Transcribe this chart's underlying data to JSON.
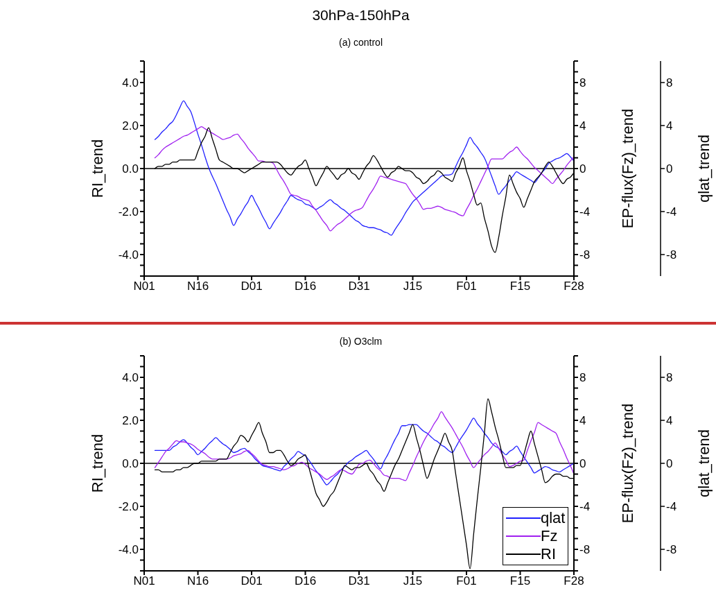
{
  "chart_data": [
    {
      "type": "line",
      "title": "30hPa-150hPa",
      "subtitle": "(a) control",
      "ylabel": "RI_trend",
      "y2label": "EP-flux(Fz)_trend",
      "y3label": "qlat_trend",
      "categories": [
        "N01",
        null,
        null,
        null,
        null,
        null,
        null,
        null,
        null,
        null,
        null,
        null,
        null,
        null,
        null,
        "N16",
        null,
        null,
        null,
        null,
        null,
        null,
        null,
        null,
        null,
        null,
        null,
        null,
        null,
        null,
        "D01",
        null,
        null,
        null,
        null,
        null,
        null,
        null,
        null,
        null,
        null,
        null,
        null,
        null,
        null,
        "D16",
        null,
        null,
        null,
        null,
        null,
        null,
        null,
        null,
        null,
        null,
        null,
        null,
        null,
        null,
        "D31",
        null,
        null,
        null,
        null,
        null,
        null,
        null,
        null,
        null,
        null,
        null,
        null,
        null,
        null,
        "J15",
        null,
        null,
        null,
        null,
        null,
        null,
        null,
        null,
        null,
        null,
        null,
        null,
        null,
        null,
        "F01",
        null,
        null,
        null,
        null,
        null,
        null,
        null,
        null,
        null,
        null,
        null,
        null,
        null,
        null,
        "F15",
        null,
        null,
        null,
        null,
        null,
        null,
        null,
        null,
        null,
        null,
        null,
        null,
        null,
        null,
        "F28"
      ],
      "ylim": [
        -5,
        5
      ],
      "yticks": [
        {
          "value": -5,
          "label": null
        },
        {
          "value": -4.5,
          "label": null
        },
        {
          "value": -4,
          "label": "-4.0"
        },
        {
          "value": -3.5,
          "label": null
        },
        {
          "value": -3,
          "label": null
        },
        {
          "value": -2.5,
          "label": null
        },
        {
          "value": -2,
          "label": "-2.0"
        },
        {
          "value": -1.5,
          "label": null
        },
        {
          "value": -1,
          "label": null
        },
        {
          "value": -0.5,
          "label": null
        },
        {
          "value": 0,
          "label": "0.0"
        },
        {
          "value": 0.5,
          "label": null
        },
        {
          "value": 1,
          "label": null
        },
        {
          "value": 1.5,
          "label": null
        },
        {
          "value": 2,
          "label": "2.0"
        },
        {
          "value": 2.5,
          "label": null
        },
        {
          "value": 3,
          "label": null
        },
        {
          "value": 3.5,
          "label": null
        },
        {
          "value": 4,
          "label": "4.0"
        },
        {
          "value": 4.5,
          "label": null
        },
        {
          "value": 5,
          "label": null
        }
      ],
      "y2lim": [
        -10,
        10
      ],
      "y2ticks": [
        {
          "value": -10,
          "label": null
        },
        {
          "value": -9,
          "label": null
        },
        -8,
        {
          "value": -7,
          "label": null
        },
        {
          "value": -6,
          "label": null
        },
        {
          "value": -5,
          "label": null
        },
        -4,
        {
          "value": -3,
          "label": null
        },
        {
          "value": -2,
          "label": null
        },
        {
          "value": -1,
          "label": null
        },
        0,
        {
          "value": 1,
          "label": null
        },
        {
          "value": 2,
          "label": null
        },
        {
          "value": 3,
          "label": null
        },
        4,
        {
          "value": 5,
          "label": null
        },
        {
          "value": 6,
          "label": null
        },
        {
          "value": 7,
          "label": null
        },
        8,
        {
          "value": 9,
          "label": null
        },
        {
          "value": 10,
          "label": null
        }
      ],
      "y3lim": [
        -10,
        10
      ],
      "y3ticks": [
        -8,
        -4,
        0,
        4,
        8
      ],
      "grid": false,
      "legend": false,
      "marker": "none",
      "line_style": "solid",
      "ref_lines": [
        {
          "axis": "y",
          "value": 0,
          "color": "#000000"
        }
      ],
      "series": [
        {
          "color": "#2020ff",
          "axis": "y3",
          "values": [
            null,
            null,
            null,
            2.7,
            3.0,
            3.4,
            3.7,
            4.1,
            4.4,
            5.0,
            5.7,
            6.3,
            5.8,
            5.3,
            4.3,
            3.2,
            2.2,
            1.1,
            0.1,
            -0.7,
            -1.4,
            -2.2,
            -3.0,
            -3.8,
            -4.5,
            -5.3,
            -4.7,
            -4.2,
            -3.6,
            -3.1,
            -2.5,
            -3.1,
            -3.7,
            -4.4,
            -5.0,
            -5.6,
            -5.1,
            -4.6,
            -4.1,
            -3.5,
            -3.0,
            -2.5,
            -2.7,
            -2.9,
            -3.0,
            -3.3,
            -3.4,
            -3.6,
            -3.8,
            -3.6,
            -3.4,
            -3.1,
            -2.9,
            -3.2,
            -3.4,
            -3.7,
            -3.9,
            -4.2,
            -4.5,
            -4.8,
            -5.0,
            -5.3,
            -5.4,
            -5.5,
            -5.5,
            -5.6,
            -5.7,
            -5.9,
            -6.0,
            -6.2,
            -5.7,
            -5.2,
            -4.7,
            -4.1,
            -3.6,
            -3.1,
            -2.8,
            -2.5,
            -2.2,
            -1.9,
            -1.6,
            -1.3,
            -1.0,
            -0.7,
            -0.6,
            -0.6,
            -0.5,
            0.2,
            0.9,
            1.5,
            2.2,
            2.9,
            2.4,
            2.0,
            1.5,
            1.0,
            0.2,
            -0.7,
            -1.6,
            -2.4,
            -2.0,
            -1.6,
            -1.1,
            -0.7,
            -0.3,
            -0.5,
            -0.7,
            -0.9,
            -1.1,
            -1.3,
            -0.9,
            -0.4,
            0.0,
            0.5,
            0.7,
            0.9,
            1.0,
            1.2,
            1.4,
            1.1,
            0.7
          ]
        },
        {
          "color": "#a020f0",
          "axis": "y2",
          "values": [
            null,
            null,
            null,
            1.0,
            1.3,
            1.7,
            2.0,
            2.2,
            2.4,
            2.6,
            2.8,
            3.0,
            3.1,
            3.3,
            3.5,
            3.7,
            3.9,
            3.7,
            3.5,
            3.3,
            3.1,
            2.9,
            2.7,
            2.8,
            2.9,
            3.1,
            3.2,
            2.8,
            2.4,
            1.9,
            1.5,
            1.1,
            0.7,
            0.7,
            0.6,
            0.6,
            0.5,
            -0.1,
            -0.7,
            -1.2,
            -1.8,
            -2.4,
            -2.5,
            -2.6,
            -2.8,
            -2.9,
            -3.0,
            -3.5,
            -3.9,
            -4.4,
            -4.9,
            -5.3,
            -5.8,
            -5.5,
            -5.2,
            -5.0,
            -4.7,
            -4.4,
            -4.1,
            -3.9,
            -3.8,
            -3.6,
            -3.0,
            -2.4,
            -1.9,
            -1.3,
            -0.7,
            -0.8,
            -0.9,
            -1.0,
            -1.1,
            -1.2,
            -1.3,
            -1.4,
            -1.9,
            -2.4,
            -2.8,
            -3.3,
            -3.8,
            -3.7,
            -3.7,
            -3.6,
            -3.5,
            -3.6,
            -3.8,
            -3.9,
            -4.0,
            -4.1,
            -4.3,
            -4.4,
            -3.8,
            -3.2,
            -2.5,
            -1.9,
            -1.2,
            -0.5,
            0.2,
            0.9,
            0.9,
            0.9,
            0.9,
            1.2,
            1.5,
            1.7,
            2.0,
            1.6,
            1.2,
            0.9,
            0.5,
            0.1,
            -0.2,
            -0.5,
            -0.8,
            -1.1,
            -1.4,
            -1.0,
            -0.6,
            -0.2,
            0.3,
            0.7,
            1.1
          ]
        },
        {
          "color": "#000000",
          "axis": "y",
          "values": [
            null,
            null,
            null,
            0.0,
            0.1,
            0.1,
            0.2,
            0.2,
            0.3,
            0.3,
            0.4,
            0.4,
            0.4,
            0.4,
            0.4,
            0.8,
            1.2,
            1.5,
            1.9,
            1.4,
            0.9,
            0.4,
            0.3,
            0.2,
            0.1,
            0.0,
            0.0,
            -0.1,
            -0.2,
            -0.1,
            0.0,
            0.1,
            0.2,
            0.3,
            0.3,
            0.3,
            0.3,
            0.3,
            0.2,
            0.0,
            -0.2,
            -0.3,
            -0.1,
            0.1,
            0.2,
            0.4,
            0.0,
            -0.4,
            -0.8,
            -0.5,
            -0.2,
            0.1,
            -0.1,
            -0.3,
            -0.5,
            -0.3,
            -0.2,
            0.0,
            -0.2,
            -0.3,
            -0.5,
            -0.2,
            0.1,
            0.3,
            0.6,
            0.4,
            0.1,
            -0.2,
            -0.4,
            -0.2,
            -0.1,
            0.1,
            0.0,
            -0.1,
            -0.1,
            -0.2,
            -0.4,
            -0.5,
            -0.7,
            -0.6,
            -0.4,
            -0.3,
            -0.1,
            -0.2,
            -0.4,
            -0.5,
            -0.6,
            -0.2,
            0.1,
            0.5,
            -0.1,
            -0.6,
            -1.2,
            -1.7,
            -1.6,
            -2.3,
            -2.9,
            -3.6,
            -3.9,
            -3.2,
            -2.2,
            -1.3,
            -0.3,
            -0.7,
            -1.1,
            -1.4,
            -1.8,
            -1.4,
            -1.0,
            -0.6,
            -0.4,
            -0.2,
            0.1,
            0.3,
            0.1,
            -0.2,
            -0.5,
            -0.7,
            -0.5,
            -0.4,
            -0.2
          ]
        }
      ]
    },
    {
      "type": "line",
      "title": "(b) O3clm",
      "ylabel": "RI_trend",
      "y2label": "EP-flux(Fz)_trend",
      "y3label": "qlat_trend",
      "categories": [
        "N01",
        null,
        null,
        null,
        null,
        null,
        null,
        null,
        null,
        null,
        null,
        null,
        null,
        null,
        null,
        "N16",
        null,
        null,
        null,
        null,
        null,
        null,
        null,
        null,
        null,
        null,
        null,
        null,
        null,
        null,
        "D01",
        null,
        null,
        null,
        null,
        null,
        null,
        null,
        null,
        null,
        null,
        null,
        null,
        null,
        null,
        "D16",
        null,
        null,
        null,
        null,
        null,
        null,
        null,
        null,
        null,
        null,
        null,
        null,
        null,
        null,
        "D31",
        null,
        null,
        null,
        null,
        null,
        null,
        null,
        null,
        null,
        null,
        null,
        null,
        null,
        null,
        "J15",
        null,
        null,
        null,
        null,
        null,
        null,
        null,
        null,
        null,
        null,
        null,
        null,
        null,
        null,
        "F01",
        null,
        null,
        null,
        null,
        null,
        null,
        null,
        null,
        null,
        null,
        null,
        null,
        null,
        null,
        "F15",
        null,
        null,
        null,
        null,
        null,
        null,
        null,
        null,
        null,
        null,
        null,
        null,
        null,
        null,
        "F28"
      ],
      "ylim": [
        -5,
        5
      ],
      "yticks": [
        {
          "value": -5,
          "label": null
        },
        {
          "value": -4.5,
          "label": null
        },
        {
          "value": -4,
          "label": "-4.0"
        },
        {
          "value": -3.5,
          "label": null
        },
        {
          "value": -3,
          "label": null
        },
        {
          "value": -2.5,
          "label": null
        },
        {
          "value": -2,
          "label": "-2.0"
        },
        {
          "value": -1.5,
          "label": null
        },
        {
          "value": -1,
          "label": null
        },
        {
          "value": -0.5,
          "label": null
        },
        {
          "value": 0,
          "label": "0.0"
        },
        {
          "value": 0.5,
          "label": null
        },
        {
          "value": 1,
          "label": null
        },
        {
          "value": 1.5,
          "label": null
        },
        {
          "value": 2,
          "label": "2.0"
        },
        {
          "value": 2.5,
          "label": null
        },
        {
          "value": 3,
          "label": null
        },
        {
          "value": 3.5,
          "label": null
        },
        {
          "value": 4,
          "label": "4.0"
        },
        {
          "value": 4.5,
          "label": null
        },
        {
          "value": 5,
          "label": null
        }
      ],
      "y2lim": [
        -10,
        10
      ],
      "y2ticks": [
        {
          "value": -10,
          "label": null
        },
        {
          "value": -9,
          "label": null
        },
        -8,
        {
          "value": -7,
          "label": null
        },
        {
          "value": -6,
          "label": null
        },
        {
          "value": -5,
          "label": null
        },
        -4,
        {
          "value": -3,
          "label": null
        },
        {
          "value": -2,
          "label": null
        },
        {
          "value": -1,
          "label": null
        },
        0,
        {
          "value": 1,
          "label": null
        },
        {
          "value": 2,
          "label": null
        },
        {
          "value": 3,
          "label": null
        },
        4,
        {
          "value": 5,
          "label": null
        },
        {
          "value": 6,
          "label": null
        },
        {
          "value": 7,
          "label": null
        },
        8,
        {
          "value": 9,
          "label": null
        },
        {
          "value": 10,
          "label": null
        }
      ],
      "y3lim": [
        -10,
        10
      ],
      "y3ticks": [
        -8,
        -4,
        0,
        4,
        8
      ],
      "grid": false,
      "legend": "bottom right",
      "marker": "none",
      "line_style": "solid",
      "ref_lines": [
        {
          "axis": "y",
          "value": 0,
          "color": "#000000"
        }
      ],
      "series": [
        {
          "name": "qlat",
          "color": "#2020ff",
          "axis": "y3",
          "values": [
            null,
            null,
            null,
            1.2,
            1.2,
            1.2,
            1.2,
            1.2,
            1.5,
            1.7,
            2.0,
            2.2,
            1.9,
            1.5,
            1.2,
            0.8,
            1.1,
            1.4,
            1.8,
            2.1,
            2.4,
            2.1,
            1.8,
            1.6,
            1.3,
            1.0,
            1.1,
            1.3,
            1.4,
            1.1,
            0.8,
            0.4,
            0.1,
            -0.2,
            -0.3,
            -0.4,
            -0.5,
            -0.6,
            -0.7,
            -0.3,
            0.0,
            0.4,
            0.7,
            1.1,
            0.9,
            0.7,
            0.3,
            -0.2,
            -0.7,
            -1.1,
            -1.6,
            -2.0,
            -1.7,
            -1.3,
            -1.0,
            -0.6,
            -0.3,
            0.1,
            0.3,
            0.6,
            0.8,
            1.0,
            1.2,
            0.8,
            0.4,
            -0.1,
            -0.5,
            0.2,
            0.8,
            1.5,
            2.2,
            2.8,
            3.5,
            3.5,
            3.6,
            3.6,
            3.6,
            3.3,
            3.0,
            2.8,
            2.5,
            2.2,
            2.0,
            1.7,
            1.5,
            1.2,
            1.0,
            1.5,
            2.1,
            2.6,
            3.1,
            3.7,
            4.2,
            3.7,
            3.3,
            2.8,
            2.4,
            1.9,
            1.6,
            1.4,
            1.1,
            0.8,
            1.1,
            1.3,
            1.6,
            1.1,
            0.6,
            0.1,
            -0.4,
            -0.9,
            -0.7,
            -0.5,
            -0.3,
            -0.4,
            -0.6,
            -0.7,
            -0.8,
            -0.6,
            -0.4,
            -0.2,
            0.0
          ]
        },
        {
          "name": "Fz",
          "color": "#a020f0",
          "axis": "y2",
          "values": [
            null,
            null,
            null,
            -0.4,
            0.1,
            0.6,
            1.1,
            1.4,
            1.8,
            2.1,
            2.0,
            2.0,
            1.9,
            1.8,
            1.6,
            1.3,
            1.1,
            0.9,
            0.6,
            0.4,
            0.4,
            0.4,
            0.4,
            0.4,
            0.5,
            0.7,
            0.8,
            0.9,
            1.1,
            1.2,
            0.9,
            0.6,
            0.2,
            -0.1,
            -0.2,
            -0.3,
            -0.3,
            -0.4,
            -0.5,
            -0.6,
            -0.5,
            -0.3,
            -0.2,
            0.0,
            0.1,
            -0.1,
            -0.4,
            -0.6,
            -0.8,
            -1.0,
            -1.3,
            -1.5,
            -1.3,
            -1.1,
            -0.8,
            -0.6,
            -0.7,
            -0.9,
            -1.0,
            -0.6,
            -0.1,
            0.0,
            0.2,
            0.3,
            0.0,
            -0.4,
            -0.7,
            -1.1,
            -1.2,
            -1.4,
            -1.4,
            -1.4,
            -1.5,
            -1.6,
            -0.9,
            -0.2,
            0.6,
            1.3,
            2.0,
            2.6,
            3.1,
            3.7,
            4.2,
            4.8,
            4.3,
            3.8,
            3.3,
            2.7,
            2.1,
            1.5,
            0.8,
            0.2,
            -0.4,
            0.0,
            0.4,
            0.8,
            1.1,
            1.5,
            1.9,
            1.4,
            0.8,
            0.3,
            -0.3,
            -0.2,
            0.0,
            0.2,
            0.3,
            1.2,
            2.1,
            2.9,
            3.8,
            3.6,
            3.4,
            3.2,
            3.0,
            2.8,
            2.0,
            1.3,
            0.5,
            -0.2,
            -1.0
          ]
        },
        {
          "name": "RI",
          "color": "#000000",
          "axis": "y",
          "values": [
            null,
            null,
            null,
            -0.3,
            -0.3,
            -0.4,
            -0.4,
            -0.4,
            -0.4,
            -0.3,
            -0.3,
            -0.2,
            -0.2,
            -0.1,
            0.0,
            0.0,
            0.1,
            0.1,
            0.1,
            0.1,
            0.1,
            0.2,
            0.2,
            0.2,
            0.5,
            0.8,
            1.0,
            1.3,
            1.2,
            1.0,
            1.3,
            1.6,
            1.9,
            1.4,
            1.0,
            0.5,
            0.5,
            0.6,
            0.6,
            0.4,
            0.1,
            -0.1,
            0.0,
            0.2,
            0.3,
            0.4,
            -0.2,
            -0.8,
            -1.4,
            -1.7,
            -2.0,
            -1.8,
            -1.5,
            -1.3,
            -0.9,
            -0.5,
            -0.1,
            -0.2,
            -0.3,
            -0.2,
            -0.2,
            -0.1,
            0.0,
            -0.3,
            -0.5,
            -0.8,
            -1.0,
            -1.3,
            -0.9,
            -0.5,
            -0.1,
            0.2,
            0.6,
            1.0,
            1.4,
            1.8,
            1.2,
            0.6,
            -0.1,
            -0.7,
            -0.3,
            0.2,
            0.6,
            1.0,
            1.4,
            1.0,
            0.6,
            -0.5,
            -1.6,
            -2.7,
            -3.8,
            -4.9,
            -3.3,
            -1.7,
            -0.2,
            1.4,
            3.0,
            2.4,
            1.7,
            1.1,
            0.4,
            -0.2,
            -0.2,
            -0.2,
            -0.1,
            -0.1,
            0.4,
            1.0,
            1.5,
            0.9,
            0.3,
            -0.3,
            -0.9,
            -0.8,
            -0.6,
            -0.5,
            -0.5,
            -0.6,
            -0.6,
            -0.7,
            -0.7
          ]
        }
      ]
    }
  ]
}
